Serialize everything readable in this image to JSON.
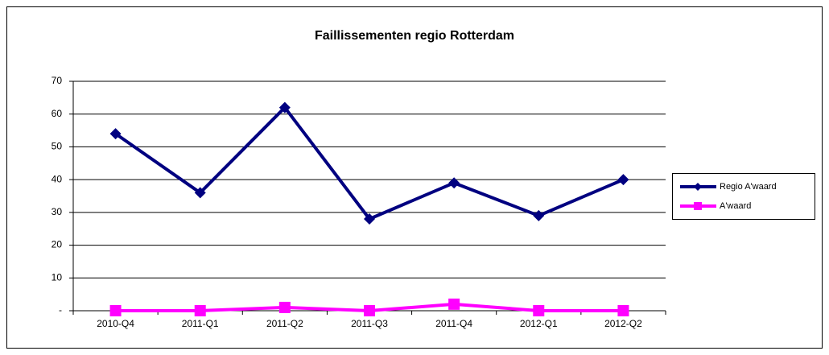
{
  "chart_data": {
    "type": "line",
    "title": "Faillissementen regio Rotterdam",
    "categories": [
      "2010-Q4",
      "2011-Q1",
      "2011-Q2",
      "2011-Q3",
      "2011-Q4",
      "2012-Q1",
      "2012-Q2"
    ],
    "series": [
      {
        "name": "Regio A'waard",
        "color": "#000080",
        "marker": "diamond",
        "values": [
          54,
          36,
          62,
          28,
          39,
          29,
          40
        ]
      },
      {
        "name": "A'waard",
        "color": "#ff00ff",
        "marker": "square",
        "values": [
          0,
          0,
          1,
          0,
          2,
          0,
          0
        ]
      }
    ],
    "ylim": [
      0,
      70
    ],
    "yticks": [
      {
        "value": 0,
        "label": "-"
      },
      10,
      20,
      30,
      40,
      50,
      60,
      70
    ],
    "grid": true,
    "legend": "right"
  }
}
